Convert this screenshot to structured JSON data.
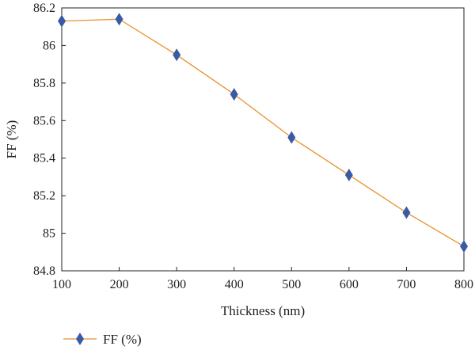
{
  "chart_data": {
    "type": "line",
    "xlabel": "Thickness (nm)",
    "ylabel": "FF (%)",
    "xlim": [
      100,
      800
    ],
    "ylim": [
      84.8,
      86.2
    ],
    "x_ticks": [
      "100",
      "200",
      "300",
      "400",
      "500",
      "600",
      "700",
      "800"
    ],
    "y_ticks": [
      "84.8",
      "85",
      "85.2",
      "85.4",
      "85.6",
      "85.8",
      "86",
      "86.2"
    ],
    "grid": false,
    "legend_position": "bottom-left",
    "series": [
      {
        "name": "FF (%)",
        "line_color": "#e8912d",
        "marker_color": "#3b5aa6",
        "marker": "diamond",
        "x": [
          100,
          200,
          300,
          400,
          500,
          600,
          700,
          800
        ],
        "y": [
          86.13,
          86.14,
          85.95,
          85.74,
          85.51,
          85.31,
          85.11,
          84.93
        ]
      }
    ]
  }
}
